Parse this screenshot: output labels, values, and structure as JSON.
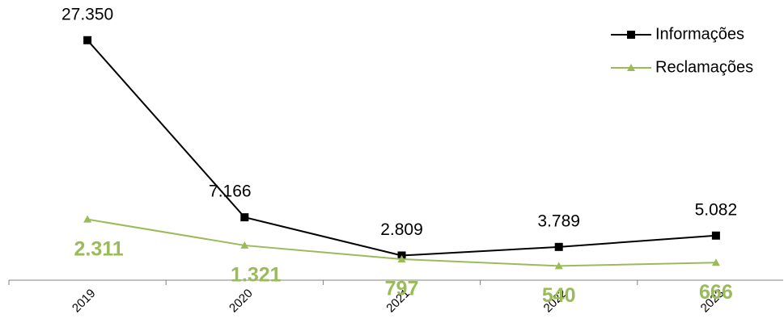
{
  "chart_data": {
    "type": "line",
    "categories": [
      "2019",
      "2020",
      "2021",
      "2022",
      "2023"
    ],
    "series": [
      {
        "name": "Informações",
        "color": "#000000",
        "marker": "square",
        "values": [
          27350,
          7166,
          2809,
          3789,
          5082
        ],
        "value_labels": [
          "27.350",
          "7.166",
          "2.809",
          "3.789",
          "5.082"
        ]
      },
      {
        "name": "Reclamações",
        "color": "#9bbb59",
        "marker": "triangle",
        "axis": "y2",
        "values": [
          2311,
          1321,
          797,
          540,
          666
        ],
        "value_labels": [
          "2.311",
          "1.321",
          "797",
          "540",
          "666"
        ]
      }
    ],
    "ylim": [
      0,
      30000
    ],
    "y2lim": [
      0,
      10000
    ],
    "legend": "top-right"
  }
}
